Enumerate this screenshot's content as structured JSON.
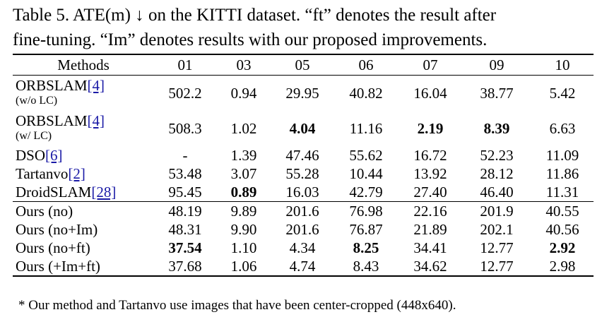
{
  "caption": {
    "line1": "Table 5. ATE(m) ↓ on the KITTI dataset. “ft” denotes the result after",
    "line2": "fine-tuning. “Im” denotes results with our proposed improvements."
  },
  "table": {
    "headers": [
      "Methods",
      "01",
      "03",
      "05",
      "06",
      "07",
      "09",
      "10"
    ],
    "rows": [
      {
        "method": "ORBSLAM",
        "cite": "[4]",
        "note": "(w/o  LC)",
        "values": [
          "502.2",
          "0.94",
          "29.95",
          "40.82",
          "16.04",
          "38.77",
          "5.42"
        ],
        "bold": []
      },
      {
        "method": "ORBSLAM",
        "cite": "[4]",
        "note": "(w/ LC)",
        "values": [
          "508.3",
          "1.02",
          "4.04",
          "11.16",
          "2.19",
          "8.39",
          "6.63"
        ],
        "bold": [
          2,
          4,
          5
        ]
      },
      {
        "method": "DSO",
        "cite": "[6]",
        "values": [
          "-",
          "1.39",
          "47.46",
          "55.62",
          "16.72",
          "52.23",
          "11.09"
        ],
        "bold": []
      },
      {
        "method": "Tartanvo",
        "cite": "[2]",
        "values": [
          "53.48",
          "3.07",
          "55.28",
          "10.44",
          "13.92",
          "28.12",
          "11.86"
        ],
        "bold": []
      },
      {
        "method": "DroidSLAM",
        "cite": "[28]",
        "values": [
          "95.45",
          "0.89",
          "16.03",
          "42.79",
          "27.40",
          "46.40",
          "11.31"
        ],
        "bold": [
          1
        ]
      },
      {
        "method": "Ours (no)",
        "values": [
          "48.19",
          "9.89",
          "201.6",
          "76.98",
          "22.16",
          "201.9",
          "40.55"
        ],
        "bold": []
      },
      {
        "method": "Ours (no+Im)",
        "values": [
          "48.31",
          "9.90",
          "201.6",
          "76.87",
          "21.89",
          "202.1",
          "40.56"
        ],
        "bold": []
      },
      {
        "method": "Ours (no+ft)",
        "values": [
          "37.54",
          "1.10",
          "4.34",
          "8.25",
          "34.41",
          "12.77",
          "2.92"
        ],
        "bold": [
          0,
          3,
          6
        ]
      },
      {
        "method": "Ours (+Im+ft)",
        "values": [
          "37.68",
          "1.06",
          "4.74",
          "8.43",
          "34.62",
          "12.77",
          "2.98"
        ],
        "bold": []
      }
    ]
  },
  "footnote": "* Our method and Tartanvo use images that have been center-cropped (448x640)."
}
